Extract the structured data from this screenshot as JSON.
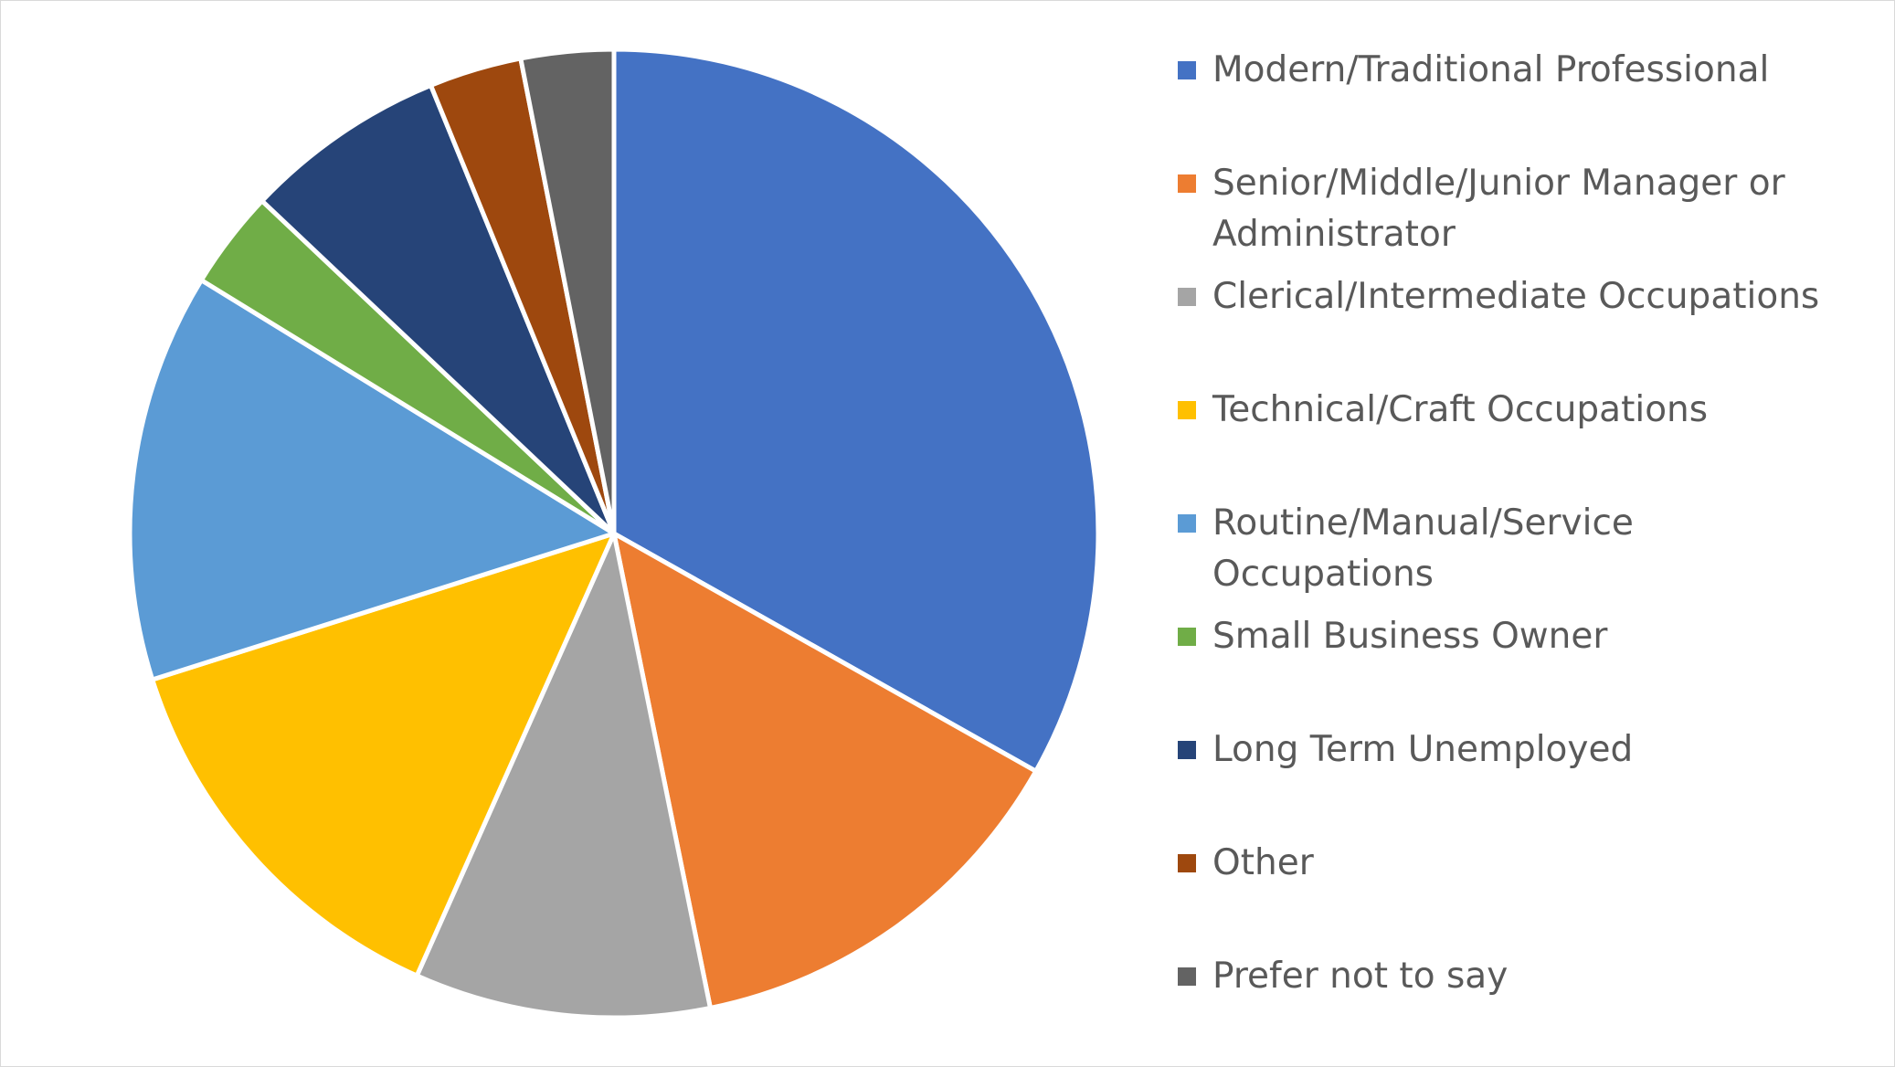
{
  "chart_data": {
    "type": "pie",
    "title": "",
    "legend_position": "right",
    "slices": [
      {
        "name": "Modern/Traditional Professional",
        "value": 33.3,
        "color": "#4472C4"
      },
      {
        "name": "Senior/Middle/Junior Manager or Administrator",
        "value": 13.7,
        "color": "#ED7D31"
      },
      {
        "name": "Clerical/Intermediate Occupations",
        "value": 9.9,
        "color": "#A5A5A5"
      },
      {
        "name": "Technical/Craft Occupations",
        "value": 13.5,
        "color": "#FFC000"
      },
      {
        "name": "Routine/Manual/Service Occupations",
        "value": 13.7,
        "color": "#5B9BD5"
      },
      {
        "name": "Small Business Owner",
        "value": 3.3,
        "color": "#70AD47"
      },
      {
        "name": "Long Term Unemployed",
        "value": 6.8,
        "color": "#264478"
      },
      {
        "name": "Other",
        "value": 3.1,
        "color": "#9E480E"
      },
      {
        "name": "Prefer not to say",
        "value": 3.1,
        "color": "#636363"
      }
    ]
  }
}
